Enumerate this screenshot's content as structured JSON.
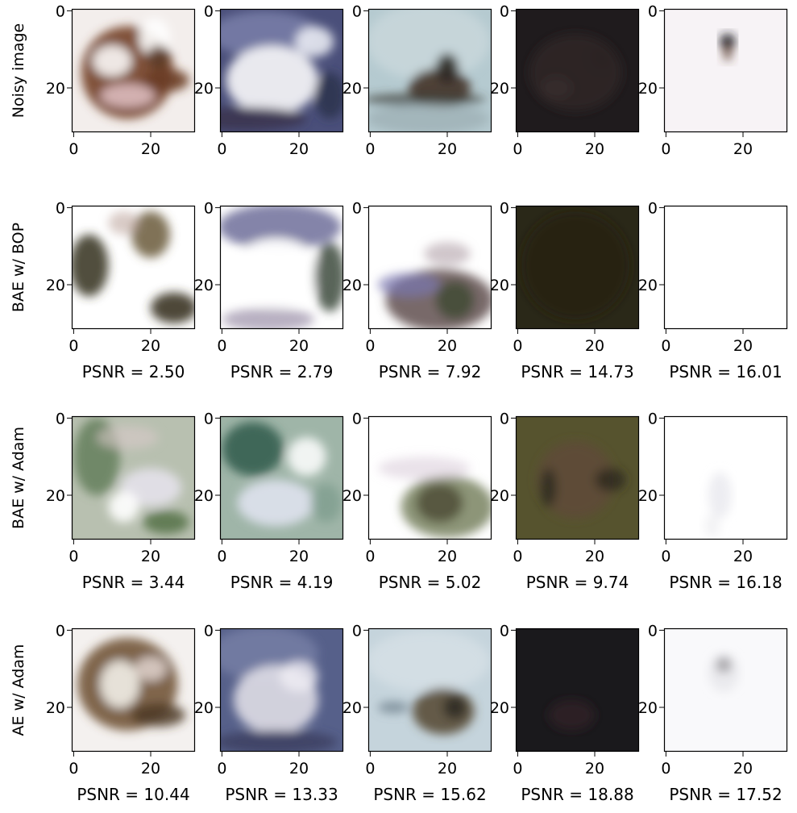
{
  "chart_data": {
    "type": "image_grid",
    "description_units": "pixel coordinates of 32x32 images",
    "xlim": [
      0,
      31
    ],
    "ylim": [
      31,
      0
    ],
    "x_ticks": [
      0,
      20
    ],
    "y_ticks": [
      0,
      20
    ],
    "rows": [
      {
        "label": "Noisy image",
        "psnr_labels": [
          "",
          "",
          "",
          "",
          ""
        ],
        "cells": [
          {
            "bg": "#f3eeec",
            "blobs": [
              {
                "cx": 14,
                "cy": 16,
                "rx": 12,
                "ry": 12,
                "c": "#7a4a30",
                "o": 0.95
              },
              {
                "cx": 10,
                "cy": 13,
                "rx": 5,
                "ry": 4,
                "c": "#f4f0ee",
                "o": 0.95
              },
              {
                "cx": 21,
                "cy": 7,
                "rx": 4,
                "ry": 5,
                "c": "#ffffff",
                "o": 0.9
              },
              {
                "cx": 22,
                "cy": 12,
                "rx": 3,
                "ry": 3,
                "c": "#5a3a28",
                "o": 0.9
              },
              {
                "cx": 14,
                "cy": 22,
                "rx": 7,
                "ry": 3,
                "c": "#e9c9cf",
                "o": 0.8
              },
              {
                "cx": 24,
                "cy": 18,
                "rx": 6,
                "ry": 3,
                "c": "#6b3d26",
                "o": 0.9
              }
            ]
          },
          {
            "bg": "#4a4f7a",
            "blobs": [
              {
                "cx": 11,
                "cy": 6,
                "rx": 14,
                "ry": 6,
                "c": "#7d82ad",
                "o": 0.8
              },
              {
                "cx": 13,
                "cy": 18,
                "rx": 12,
                "ry": 9,
                "c": "#f1f1f4",
                "o": 0.95
              },
              {
                "cx": 24,
                "cy": 8,
                "rx": 5,
                "ry": 4,
                "c": "#e8eaf2",
                "o": 0.9
              },
              {
                "cx": 6,
                "cy": 28,
                "rx": 16,
                "ry": 3,
                "c": "#3a3550",
                "o": 0.9
              },
              {
                "cx": 28,
                "cy": 22,
                "rx": 4,
                "ry": 6,
                "c": "#2e3350",
                "o": 0.9
              }
            ]
          },
          {
            "bg": "#b5cad0",
            "blobs": [
              {
                "cx": 15,
                "cy": 8,
                "rx": 16,
                "ry": 10,
                "c": "#c8d6da",
                "o": 0.9
              },
              {
                "cx": 18,
                "cy": 20,
                "rx": 8,
                "ry": 5,
                "c": "#4a3a2e",
                "o": 0.95
              },
              {
                "cx": 20,
                "cy": 15,
                "rx": 3,
                "ry": 4,
                "c": "#2e2a26",
                "o": 0.9
              },
              {
                "cx": 14,
                "cy": 23,
                "rx": 16,
                "ry": 1.5,
                "c": "#3d4038",
                "o": 0.8
              },
              {
                "cx": 15,
                "cy": 28,
                "rx": 16,
                "ry": 4,
                "c": "#9fb0b5",
                "o": 0.8
              }
            ]
          },
          {
            "bg": "#1f1b1d",
            "blobs": [
              {
                "cx": 15,
                "cy": 16,
                "rx": 12,
                "ry": 10,
                "c": "#2e2527",
                "o": 0.8
              },
              {
                "cx": 10,
                "cy": 20,
                "rx": 4,
                "ry": 3,
                "c": "#3b2c2c",
                "o": 0.7
              },
              {
                "cx": 22,
                "cy": 12,
                "rx": 3,
                "ry": 3,
                "c": "#2b2424",
                "o": 0.7
              }
            ]
          },
          {
            "bg": "#f7f3f6",
            "blobs": [
              {
                "cx": 16,
                "cy": 8,
                "rx": 2,
                "ry": 2,
                "c": "#1e1a22",
                "o": 0.95
              },
              {
                "cx": 16,
                "cy": 11,
                "rx": 1,
                "ry": 2,
                "c": "#5a3a2a",
                "o": 0.9
              }
            ]
          }
        ]
      },
      {
        "label": "BAE w/ BOP",
        "psnr_labels": [
          "PSNR = 2.50",
          "PSNR = 2.79",
          "PSNR = 7.92",
          "PSNR = 14.73",
          "PSNR = 16.01"
        ],
        "cells": [
          {
            "bg": "#ffffff",
            "blobs": [
              {
                "cx": 4,
                "cy": 15,
                "rx": 5,
                "ry": 8,
                "c": "#3d3a28",
                "o": 0.9
              },
              {
                "cx": 20,
                "cy": 7,
                "rx": 5,
                "ry": 6,
                "c": "#6a5a3a",
                "o": 0.85
              },
              {
                "cx": 13,
                "cy": 4,
                "rx": 4,
                "ry": 3,
                "c": "#c0a9a0",
                "o": 0.6
              },
              {
                "cx": 26,
                "cy": 26,
                "rx": 6,
                "ry": 4,
                "c": "#3a3525",
                "o": 0.9
              }
            ]
          },
          {
            "bg": "#ffffff",
            "blobs": [
              {
                "cx": 15,
                "cy": 5,
                "rx": 16,
                "ry": 6,
                "c": "#6e6f9a",
                "o": 0.85
              },
              {
                "cx": 14,
                "cy": 17,
                "rx": 12,
                "ry": 9,
                "c": "#ffffff",
                "o": 0.95
              },
              {
                "cx": 28,
                "cy": 18,
                "rx": 4,
                "ry": 9,
                "c": "#3d4a3d",
                "o": 0.85
              },
              {
                "cx": 12,
                "cy": 29,
                "rx": 12,
                "ry": 3,
                "c": "#9a8fa8",
                "o": 0.7
              }
            ]
          },
          {
            "bg": "#ffffff",
            "blobs": [
              {
                "cx": 18,
                "cy": 24,
                "rx": 14,
                "ry": 8,
                "c": "#6a5a5a",
                "o": 0.9
              },
              {
                "cx": 10,
                "cy": 20,
                "rx": 8,
                "ry": 3,
                "c": "#7a78b0",
                "o": 0.7
              },
              {
                "cx": 22,
                "cy": 24,
                "rx": 5,
                "ry": 5,
                "c": "#3d4a30",
                "o": 0.8
              },
              {
                "cx": 20,
                "cy": 12,
                "rx": 6,
                "ry": 3,
                "c": "#b0a0a8",
                "o": 0.6
              }
            ]
          },
          {
            "bg": "#2a2818",
            "blobs": [
              {
                "cx": 15,
                "cy": 15,
                "rx": 14,
                "ry": 14,
                "c": "#252312",
                "o": 0.8
              }
            ]
          },
          {
            "bg": "#ffffff",
            "blobs": []
          }
        ]
      },
      {
        "label": "BAE w/ Adam",
        "psnr_labels": [
          "PSNR = 3.44",
          "PSNR = 4.19",
          "PSNR = 5.02",
          "PSNR = 9.74",
          "PSNR = 16.18"
        ],
        "cells": [
          {
            "bg": "#b8c0b0",
            "blobs": [
              {
                "cx": 6,
                "cy": 10,
                "rx": 6,
                "ry": 10,
                "c": "#5f7a55",
                "o": 0.8
              },
              {
                "cx": 20,
                "cy": 18,
                "rx": 8,
                "ry": 5,
                "c": "#e8e4ee",
                "o": 0.85
              },
              {
                "cx": 13,
                "cy": 23,
                "rx": 4,
                "ry": 4,
                "c": "#ffffff",
                "o": 0.9
              },
              {
                "cx": 24,
                "cy": 27,
                "rx": 6,
                "ry": 3,
                "c": "#4d6a3d",
                "o": 0.8
              },
              {
                "cx": 14,
                "cy": 5,
                "rx": 8,
                "ry": 3,
                "c": "#d9c9c9",
                "o": 0.6
              }
            ]
          },
          {
            "bg": "#9fb5a8",
            "blobs": [
              {
                "cx": 8,
                "cy": 8,
                "rx": 8,
                "ry": 7,
                "c": "#2f5a4a",
                "o": 0.85
              },
              {
                "cx": 14,
                "cy": 22,
                "rx": 10,
                "ry": 6,
                "c": "#dfe2ee",
                "o": 0.9
              },
              {
                "cx": 22,
                "cy": 10,
                "rx": 5,
                "ry": 5,
                "c": "#ffffff",
                "o": 0.85
              },
              {
                "cx": 27,
                "cy": 22,
                "rx": 4,
                "ry": 5,
                "c": "#7a9a8a",
                "o": 0.7
              }
            ]
          },
          {
            "bg": "#ffffff",
            "blobs": [
              {
                "cx": 20,
                "cy": 23,
                "rx": 12,
                "ry": 8,
                "c": "#6f7a55",
                "o": 0.8
              },
              {
                "cx": 18,
                "cy": 22,
                "rx": 6,
                "ry": 5,
                "c": "#4a4a35",
                "o": 0.8
              },
              {
                "cx": 14,
                "cy": 13,
                "rx": 12,
                "ry": 3,
                "c": "#d6c6d6",
                "o": 0.5
              }
            ]
          },
          {
            "bg": "#56532e",
            "blobs": [
              {
                "cx": 15,
                "cy": 16,
                "rx": 10,
                "ry": 10,
                "c": "#5e4a36",
                "o": 0.9
              },
              {
                "cx": 8,
                "cy": 18,
                "rx": 2,
                "ry": 5,
                "c": "#2a2a1c",
                "o": 0.85
              },
              {
                "cx": 24,
                "cy": 16,
                "rx": 4,
                "ry": 3,
                "c": "#2e2c1c",
                "o": 0.85
              }
            ]
          },
          {
            "bg": "#ffffff",
            "blobs": [
              {
                "cx": 14,
                "cy": 20,
                "rx": 3,
                "ry": 6,
                "c": "#e8e8ee",
                "o": 0.8
              },
              {
                "cx": 12,
                "cy": 28,
                "rx": 2,
                "ry": 3,
                "c": "#ececf0",
                "o": 0.7
              }
            ]
          }
        ]
      },
      {
        "label": "AE w/ Adam",
        "psnr_labels": [
          "PSNR = 10.44",
          "PSNR = 13.33",
          "PSNR = 15.62",
          "PSNR = 18.88",
          "PSNR = 17.52"
        ],
        "cells": [
          {
            "bg": "#f4f1ef",
            "blobs": [
              {
                "cx": 14,
                "cy": 14,
                "rx": 13,
                "ry": 12,
                "c": "#6b4e30",
                "o": 0.85
              },
              {
                "cx": 12,
                "cy": 14,
                "rx": 5,
                "ry": 6,
                "c": "#f2efe8",
                "o": 0.9
              },
              {
                "cx": 20,
                "cy": 10,
                "rx": 4,
                "ry": 3,
                "c": "#e8dcd8",
                "o": 0.8
              },
              {
                "cx": 22,
                "cy": 22,
                "rx": 7,
                "ry": 3,
                "c": "#4d3a26",
                "o": 0.85
              }
            ]
          },
          {
            "bg": "#56608a",
            "blobs": [
              {
                "cx": 11,
                "cy": 6,
                "rx": 14,
                "ry": 7,
                "c": "#7880a6",
                "o": 0.8
              },
              {
                "cx": 14,
                "cy": 18,
                "rx": 11,
                "ry": 9,
                "c": "#dfdde6",
                "o": 0.9
              },
              {
                "cx": 20,
                "cy": 12,
                "rx": 5,
                "ry": 4,
                "c": "#f0eef4",
                "o": 0.8
              },
              {
                "cx": 14,
                "cy": 29,
                "rx": 16,
                "ry": 3,
                "c": "#3d4060",
                "o": 0.85
              }
            ]
          },
          {
            "bg": "#c5d4dc",
            "blobs": [
              {
                "cx": 15,
                "cy": 8,
                "rx": 16,
                "ry": 8,
                "c": "#d6e0e6",
                "o": 0.8
              },
              {
                "cx": 19,
                "cy": 21,
                "rx": 8,
                "ry": 6,
                "c": "#5a4d36",
                "o": 0.9
              },
              {
                "cx": 22,
                "cy": 20,
                "rx": 3,
                "ry": 3,
                "c": "#2c2a22",
                "o": 0.85
              },
              {
                "cx": 6,
                "cy": 20,
                "rx": 4,
                "ry": 1.5,
                "c": "#6a7a86",
                "o": 0.7
              }
            ]
          },
          {
            "bg": "#1a191c",
            "blobs": [
              {
                "cx": 14,
                "cy": 22,
                "rx": 6,
                "ry": 4,
                "c": "#2e2226",
                "o": 0.8
              }
            ]
          },
          {
            "bg": "#f9f9fb",
            "blobs": [
              {
                "cx": 15,
                "cy": 9,
                "rx": 2,
                "ry": 2,
                "c": "#5e5a5c",
                "o": 0.85
              },
              {
                "cx": 15,
                "cy": 11,
                "rx": 4,
                "ry": 5,
                "c": "#dcdce2",
                "o": 0.5
              }
            ]
          }
        ]
      }
    ]
  }
}
